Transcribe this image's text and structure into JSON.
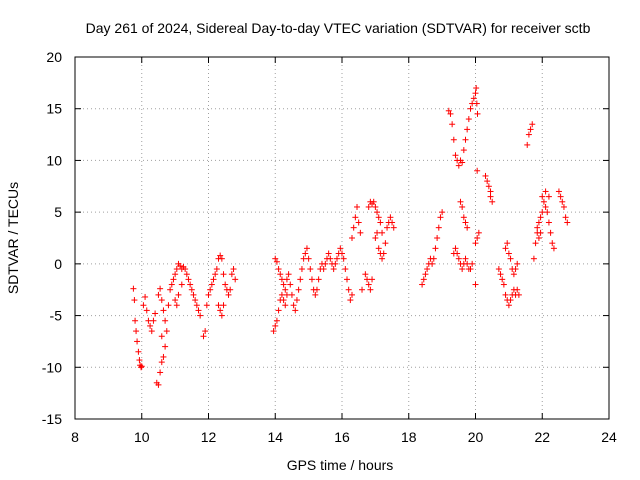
{
  "chart_data": {
    "type": "scatter",
    "title": "Day 261 of 2024, Sidereal Day-to-day VTEC variation (SDTVAR) for receiver sctb",
    "xlabel": "GPS time / hours",
    "ylabel": "SDTVAR / TECUs",
    "xlim": [
      8,
      24
    ],
    "ylim": [
      -15,
      20
    ],
    "xticks": [
      8,
      10,
      12,
      14,
      16,
      18,
      20,
      22,
      24
    ],
    "yticks": [
      -15,
      -10,
      -5,
      0,
      5,
      10,
      15,
      20
    ],
    "xtick_labels": [
      "8",
      "10",
      "12",
      "14",
      "16",
      "18",
      "20",
      "22",
      "24"
    ],
    "ytick_labels": [
      "-15",
      "-10",
      "-5",
      "0",
      "5",
      "10",
      "15",
      "20"
    ],
    "grid": true,
    "marker": "+",
    "marker_color": "#ff0000",
    "series": [
      {
        "name": "sctb",
        "points": [
          [
            9.75,
            -2.4
          ],
          [
            9.78,
            -3.5
          ],
          [
            9.8,
            -5.5
          ],
          [
            9.83,
            -6.5
          ],
          [
            9.86,
            -7.5
          ],
          [
            9.9,
            -8.5
          ],
          [
            9.93,
            -9.3
          ],
          [
            9.95,
            -9.8
          ],
          [
            9.98,
            -10.0
          ],
          [
            10.0,
            -9.9
          ],
          [
            10.05,
            -4.0
          ],
          [
            10.1,
            -3.2
          ],
          [
            10.15,
            -4.5
          ],
          [
            10.2,
            -5.5
          ],
          [
            10.25,
            -6.0
          ],
          [
            10.3,
            -6.5
          ],
          [
            10.35,
            -5.5
          ],
          [
            10.4,
            -4.8
          ],
          [
            10.45,
            -11.5
          ],
          [
            10.5,
            -11.7
          ],
          [
            10.55,
            -10.5
          ],
          [
            10.6,
            -9.5
          ],
          [
            10.65,
            -9.0
          ],
          [
            10.7,
            -8.0
          ],
          [
            10.6,
            -7.0
          ],
          [
            10.5,
            -3.0
          ],
          [
            10.55,
            -2.4
          ],
          [
            10.6,
            -3.5
          ],
          [
            10.65,
            -4.5
          ],
          [
            10.7,
            -5.5
          ],
          [
            10.75,
            -6.5
          ],
          [
            10.8,
            -4.0
          ],
          [
            10.85,
            -2.5
          ],
          [
            10.9,
            -2.0
          ],
          [
            10.95,
            -1.5
          ],
          [
            11.0,
            -1.0
          ],
          [
            11.05,
            -0.5
          ],
          [
            11.1,
            0.0
          ],
          [
            11.15,
            -0.2
          ],
          [
            11.2,
            -0.5
          ],
          [
            11.25,
            -0.3
          ],
          [
            11.3,
            -0.5
          ],
          [
            11.35,
            -1.0
          ],
          [
            11.4,
            -1.5
          ],
          [
            11.45,
            -2.0
          ],
          [
            11.5,
            -2.5
          ],
          [
            11.55,
            -3.0
          ],
          [
            11.6,
            -3.5
          ],
          [
            11.65,
            -4.0
          ],
          [
            11.7,
            -4.5
          ],
          [
            11.75,
            -5.0
          ],
          [
            11.0,
            -3.5
          ],
          [
            11.05,
            -4.0
          ],
          [
            11.1,
            -3.0
          ],
          [
            11.2,
            -2.0
          ],
          [
            11.85,
            -7.0
          ],
          [
            11.9,
            -6.5
          ],
          [
            11.95,
            -4.0
          ],
          [
            12.0,
            -3.0
          ],
          [
            12.05,
            -2.5
          ],
          [
            12.1,
            -2.0
          ],
          [
            12.15,
            -1.5
          ],
          [
            12.2,
            -1.0
          ],
          [
            12.25,
            -0.5
          ],
          [
            12.3,
            0.5
          ],
          [
            12.35,
            0.8
          ],
          [
            12.4,
            0.5
          ],
          [
            12.45,
            -1.0
          ],
          [
            12.5,
            -2.0
          ],
          [
            12.55,
            -2.5
          ],
          [
            12.6,
            -3.0
          ],
          [
            12.65,
            -2.5
          ],
          [
            12.7,
            -1.0
          ],
          [
            12.75,
            -0.5
          ],
          [
            12.8,
            -1.5
          ],
          [
            12.3,
            -4.0
          ],
          [
            12.35,
            -4.5
          ],
          [
            12.4,
            -5.0
          ],
          [
            12.45,
            -4.0
          ],
          [
            13.95,
            -6.5
          ],
          [
            14.0,
            -6.0
          ],
          [
            14.05,
            -5.5
          ],
          [
            14.1,
            -4.5
          ],
          [
            14.15,
            -3.5
          ],
          [
            14.2,
            -3.0
          ],
          [
            14.25,
            -3.5
          ],
          [
            14.3,
            -4.0
          ],
          [
            14.35,
            -3.0
          ],
          [
            14.0,
            0.5
          ],
          [
            14.05,
            0.2
          ],
          [
            14.1,
            -0.5
          ],
          [
            14.15,
            -1.0
          ],
          [
            14.2,
            -1.5
          ],
          [
            14.25,
            -2.0
          ],
          [
            14.3,
            -2.5
          ],
          [
            14.35,
            -1.5
          ],
          [
            14.4,
            -1.0
          ],
          [
            14.45,
            -2.0
          ],
          [
            14.5,
            -3.0
          ],
          [
            14.55,
            -4.0
          ],
          [
            14.6,
            -4.5
          ],
          [
            14.65,
            -3.5
          ],
          [
            14.7,
            -2.5
          ],
          [
            14.75,
            -1.5
          ],
          [
            14.8,
            -0.5
          ],
          [
            14.85,
            0.5
          ],
          [
            14.9,
            1.0
          ],
          [
            14.95,
            1.5
          ],
          [
            15.0,
            0.5
          ],
          [
            15.05,
            -0.5
          ],
          [
            15.1,
            -1.5
          ],
          [
            15.15,
            -2.5
          ],
          [
            15.2,
            -3.0
          ],
          [
            15.25,
            -2.5
          ],
          [
            15.3,
            -1.5
          ],
          [
            15.35,
            -0.5
          ],
          [
            15.4,
            0.0
          ],
          [
            15.45,
            -0.5
          ],
          [
            15.5,
            0.0
          ],
          [
            15.55,
            0.5
          ],
          [
            15.6,
            1.0
          ],
          [
            15.65,
            0.5
          ],
          [
            15.7,
            0.0
          ],
          [
            15.75,
            -0.5
          ],
          [
            15.8,
            0.0
          ],
          [
            15.85,
            0.5
          ],
          [
            15.9,
            1.0
          ],
          [
            15.95,
            1.5
          ],
          [
            16.0,
            1.0
          ],
          [
            16.05,
            0.5
          ],
          [
            16.1,
            -0.5
          ],
          [
            16.15,
            -1.5
          ],
          [
            16.2,
            -2.5
          ],
          [
            16.25,
            -3.5
          ],
          [
            16.3,
            -3.0
          ],
          [
            16.3,
            2.5
          ],
          [
            16.35,
            3.5
          ],
          [
            16.4,
            4.5
          ],
          [
            16.45,
            5.5
          ],
          [
            16.5,
            4.0
          ],
          [
            16.55,
            3.0
          ],
          [
            16.6,
            -2.5
          ],
          [
            16.7,
            -1.0
          ],
          [
            16.75,
            -1.5
          ],
          [
            16.8,
            -2.0
          ],
          [
            16.85,
            -2.5
          ],
          [
            16.9,
            -1.5
          ],
          [
            16.8,
            5.5
          ],
          [
            16.85,
            6.0
          ],
          [
            16.9,
            5.8
          ],
          [
            16.95,
            6.0
          ],
          [
            17.0,
            5.5
          ],
          [
            17.05,
            5.0
          ],
          [
            17.1,
            4.5
          ],
          [
            17.15,
            4.0
          ],
          [
            17.2,
            3.0
          ],
          [
            17.0,
            2.5
          ],
          [
            17.05,
            3.0
          ],
          [
            17.1,
            1.5
          ],
          [
            17.15,
            1.0
          ],
          [
            17.2,
            0.5
          ],
          [
            17.25,
            1.0
          ],
          [
            17.3,
            2.0
          ],
          [
            17.35,
            3.5
          ],
          [
            17.4,
            4.0
          ],
          [
            17.45,
            4.5
          ],
          [
            17.5,
            4.0
          ],
          [
            17.55,
            3.5
          ],
          [
            18.4,
            -2.0
          ],
          [
            18.45,
            -1.5
          ],
          [
            18.5,
            -1.0
          ],
          [
            18.55,
            -0.5
          ],
          [
            18.6,
            0.0
          ],
          [
            18.65,
            0.5
          ],
          [
            18.7,
            0.0
          ],
          [
            18.75,
            0.5
          ],
          [
            18.8,
            1.5
          ],
          [
            18.85,
            2.5
          ],
          [
            18.9,
            3.5
          ],
          [
            18.95,
            4.5
          ],
          [
            19.0,
            5.0
          ],
          [
            19.2,
            14.8
          ],
          [
            19.25,
            14.5
          ],
          [
            19.3,
            13.5
          ],
          [
            19.35,
            12.0
          ],
          [
            19.4,
            10.5
          ],
          [
            19.45,
            10.0
          ],
          [
            19.5,
            9.5
          ],
          [
            19.55,
            10.0
          ],
          [
            19.6,
            9.8
          ],
          [
            19.65,
            11.0
          ],
          [
            19.7,
            12.0
          ],
          [
            19.75,
            13.0
          ],
          [
            19.8,
            14.0
          ],
          [
            19.85,
            15.0
          ],
          [
            19.9,
            15.5
          ],
          [
            19.95,
            16.0
          ],
          [
            20.0,
            16.5
          ],
          [
            20.02,
            17.0
          ],
          [
            20.04,
            15.5
          ],
          [
            20.06,
            14.5
          ],
          [
            19.35,
            1.0
          ],
          [
            19.4,
            1.5
          ],
          [
            19.45,
            1.0
          ],
          [
            19.5,
            0.5
          ],
          [
            19.55,
            0.0
          ],
          [
            19.6,
            -0.5
          ],
          [
            19.65,
            0.0
          ],
          [
            19.7,
            0.5
          ],
          [
            19.75,
            0.0
          ],
          [
            19.8,
            -0.5
          ],
          [
            19.85,
            -0.5
          ],
          [
            19.9,
            0.0
          ],
          [
            19.55,
            6.0
          ],
          [
            19.6,
            5.5
          ],
          [
            19.65,
            4.5
          ],
          [
            19.7,
            4.0
          ],
          [
            19.75,
            3.5
          ],
          [
            20.0,
            2.0
          ],
          [
            20.05,
            2.5
          ],
          [
            20.1,
            3.0
          ],
          [
            20.0,
            -2.0
          ],
          [
            20.05,
            9.0
          ],
          [
            20.3,
            8.5
          ],
          [
            20.35,
            8.0
          ],
          [
            20.4,
            7.5
          ],
          [
            20.45,
            7.0
          ],
          [
            20.5,
            6.0
          ],
          [
            20.45,
            6.5
          ],
          [
            20.7,
            -0.5
          ],
          [
            20.75,
            -1.0
          ],
          [
            20.8,
            -1.5
          ],
          [
            20.85,
            -2.0
          ],
          [
            20.9,
            -3.0
          ],
          [
            20.95,
            -3.5
          ],
          [
            21.0,
            -4.0
          ],
          [
            21.05,
            -3.5
          ],
          [
            21.1,
            -3.0
          ],
          [
            21.15,
            -2.5
          ],
          [
            21.2,
            -3.0
          ],
          [
            21.25,
            -2.5
          ],
          [
            21.3,
            -3.0
          ],
          [
            20.9,
            1.5
          ],
          [
            20.95,
            2.0
          ],
          [
            21.0,
            1.0
          ],
          [
            21.05,
            0.5
          ],
          [
            21.1,
            -0.5
          ],
          [
            21.15,
            -1.0
          ],
          [
            21.2,
            -0.5
          ],
          [
            21.25,
            0.0
          ],
          [
            21.55,
            11.5
          ],
          [
            21.6,
            12.5
          ],
          [
            21.65,
            13.0
          ],
          [
            21.7,
            13.5
          ],
          [
            21.75,
            0.5
          ],
          [
            21.8,
            2.0
          ],
          [
            21.85,
            3.0
          ],
          [
            21.9,
            4.0
          ],
          [
            21.95,
            4.5
          ],
          [
            22.0,
            5.0
          ],
          [
            22.05,
            6.0
          ],
          [
            22.1,
            5.5
          ],
          [
            22.15,
            5.0
          ],
          [
            22.2,
            4.0
          ],
          [
            22.25,
            3.0
          ],
          [
            22.3,
            2.0
          ],
          [
            22.35,
            1.5
          ],
          [
            21.85,
            3.5
          ],
          [
            21.9,
            2.5
          ],
          [
            21.95,
            3.0
          ],
          [
            22.0,
            6.5
          ],
          [
            22.1,
            7.0
          ],
          [
            22.2,
            6.5
          ],
          [
            22.5,
            7.0
          ],
          [
            22.55,
            6.5
          ],
          [
            22.6,
            6.0
          ],
          [
            22.65,
            5.5
          ],
          [
            22.7,
            4.5
          ],
          [
            22.75,
            4.0
          ]
        ]
      }
    ]
  }
}
